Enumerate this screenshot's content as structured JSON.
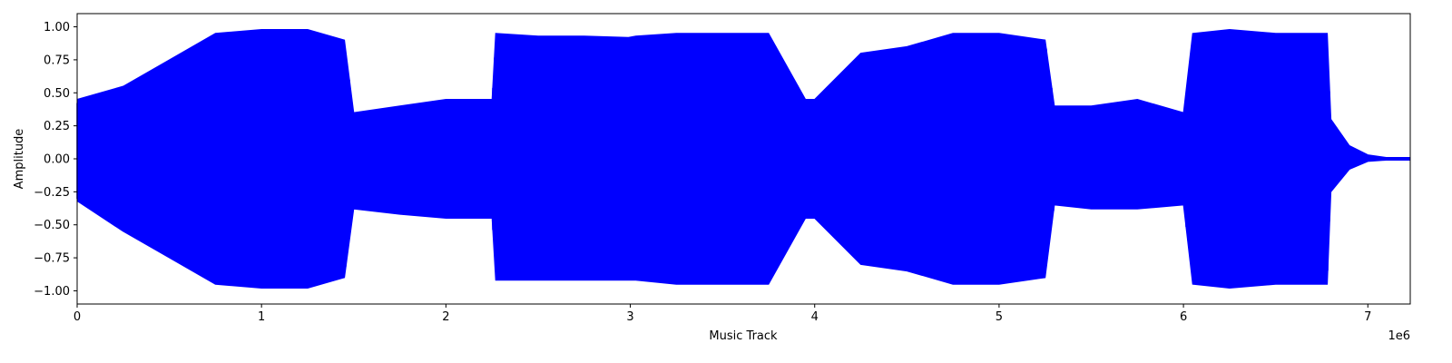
{
  "chart_data": {
    "type": "line",
    "title": "",
    "xlabel": "Music Track",
    "ylabel": "Amplitude",
    "x_offset_label": "1e6",
    "xlim": [
      0,
      7230000
    ],
    "ylim": [
      -1.1,
      1.1
    ],
    "x_ticks": [
      0,
      1000000,
      2000000,
      3000000,
      4000000,
      5000000,
      6000000,
      7000000
    ],
    "x_tick_labels": [
      "0",
      "1",
      "2",
      "3",
      "4",
      "5",
      "6",
      "7"
    ],
    "y_ticks": [
      1.0,
      0.75,
      0.5,
      0.25,
      0.0,
      -0.25,
      -0.5,
      -0.75,
      -1.0
    ],
    "y_tick_labels": [
      "1.00",
      "0.75",
      "0.50",
      "0.25",
      "0.00",
      "−0.25",
      "−0.50",
      "−0.75",
      "−1.00"
    ],
    "grid": false,
    "line_color": "#0000ff",
    "series": [
      {
        "x": [
          0,
          250000,
          500000,
          750000,
          1000000,
          1250000,
          1450000,
          1500000,
          1750000,
          2000000,
          2250000,
          2270000,
          2500000,
          2750000,
          2990000,
          3030000,
          3250000,
          3500000,
          3750000,
          3950000,
          4000000,
          4250000,
          4500000,
          4750000,
          5000000,
          5250000,
          5300000,
          5500000,
          5750000,
          6000000,
          6050000,
          6250000,
          6500000,
          6780000,
          6800000,
          6900000,
          7000000,
          7100000,
          7230000
        ],
        "upper": [
          0.45,
          0.55,
          0.75,
          0.95,
          0.98,
          0.98,
          0.9,
          0.35,
          0.4,
          0.45,
          0.45,
          0.95,
          0.93,
          0.93,
          0.92,
          0.93,
          0.95,
          0.95,
          0.95,
          0.45,
          0.45,
          0.8,
          0.85,
          0.95,
          0.95,
          0.9,
          0.4,
          0.4,
          0.45,
          0.35,
          0.95,
          0.98,
          0.95,
          0.95,
          0.3,
          0.1,
          0.03,
          0.01,
          0.01
        ],
        "lower": [
          -0.32,
          -0.55,
          -0.75,
          -0.95,
          -0.98,
          -0.98,
          -0.9,
          -0.38,
          -0.42,
          -0.45,
          -0.45,
          -0.92,
          -0.92,
          -0.92,
          -0.92,
          -0.92,
          -0.95,
          -0.95,
          -0.95,
          -0.45,
          -0.45,
          -0.8,
          -0.85,
          -0.95,
          -0.95,
          -0.9,
          -0.35,
          -0.38,
          -0.38,
          -0.35,
          -0.95,
          -0.98,
          -0.95,
          -0.95,
          -0.25,
          -0.08,
          -0.02,
          -0.01,
          -0.01
        ]
      }
    ]
  }
}
